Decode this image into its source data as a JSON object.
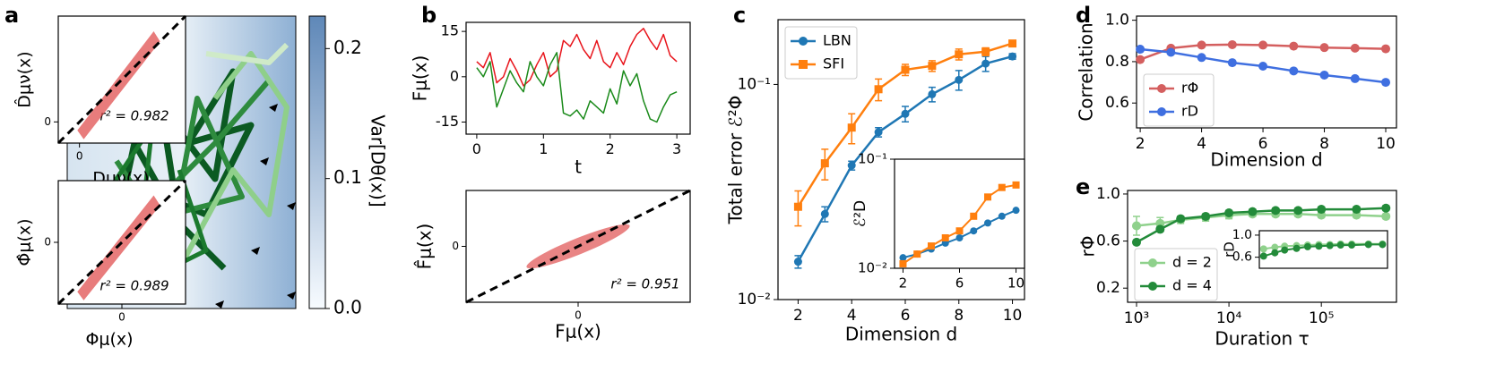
{
  "chart_data": [
    {
      "type": "contour",
      "panel": "a",
      "colorbar_label": "Var[Dθ(x)]",
      "clim": [
        0,
        0.225
      ],
      "cbticks": [
        {
          "value": 0,
          "label": "0.0"
        },
        {
          "value": 0.1,
          "label": "0.1"
        },
        {
          "value": 0.2,
          "label": "0.2"
        }
      ],
      "insets": [
        {
          "type": "scatter",
          "xlabel": "Dμν(x)",
          "ylabel": "D̂μν(x)",
          "annotation": "r² = 0.982",
          "xlim": [
            -0.2,
            1
          ],
          "ylim": [
            -0.2,
            1
          ],
          "xticks": [
            0
          ],
          "yticks": [
            0
          ]
        },
        {
          "type": "scatter",
          "xlabel": "Φμ(x)",
          "ylabel": "Φ̂μ(x)",
          "annotation": "r² = 0.989",
          "xlim": [
            -1,
            1
          ],
          "ylim": [
            -1,
            1
          ],
          "xticks": [
            0
          ],
          "yticks": [
            0
          ]
        }
      ]
    },
    {
      "type": "line",
      "panel": "b",
      "xlabel": "t",
      "ylabel": "Fμ(x)",
      "xlim": [
        -0.16,
        3.2
      ],
      "ylim": [
        -19,
        18
      ],
      "xticks": [
        0,
        1,
        2,
        3
      ],
      "yticks": [
        -15,
        0,
        15
      ],
      "x": [
        0,
        0.1,
        0.2,
        0.3,
        0.4,
        0.5,
        0.6,
        0.7,
        0.8,
        0.9,
        1,
        1.1,
        1.2,
        1.3,
        1.4,
        1.5,
        1.6,
        1.7,
        1.8,
        1.9,
        2,
        2.1,
        2.2,
        2.3,
        2.4,
        2.5,
        2.6,
        2.7,
        2.8,
        2.9,
        3
      ],
      "series": [
        {
          "color": "#e8141b",
          "values": [
            5,
            3,
            8,
            -2,
            0,
            6,
            2,
            -3,
            -1,
            4,
            8,
            0,
            2,
            12,
            10,
            14,
            9,
            6,
            12,
            5,
            3,
            8,
            4,
            10,
            14,
            16,
            12,
            9,
            14,
            7,
            5
          ]
        },
        {
          "color": "#1a8a1a",
          "values": [
            3,
            0,
            5,
            -10,
            -4,
            2,
            -2,
            -5,
            5,
            0,
            -3,
            4,
            8,
            -12,
            -13,
            -11,
            -14,
            -8,
            -10,
            -12,
            -4,
            -9,
            2,
            -3,
            1,
            -8,
            -14,
            -15,
            -10,
            -6,
            -5
          ]
        }
      ]
    },
    {
      "type": "scatter",
      "xlabel": "Fμ(x)",
      "ylabel": "F̂μ(x)",
      "annotation": "r² = 0.951",
      "xlim": [
        -1,
        1
      ],
      "ylim": [
        -1,
        1
      ],
      "xticks": [
        0
      ],
      "yticks": [
        0
      ]
    },
    {
      "type": "line",
      "panel": "c",
      "xlabel": "Dimension d",
      "ylabel": "Total error ℰ²Φ",
      "ylog": true,
      "legend": "upper left",
      "xlim": [
        1.25,
        10.45
      ],
      "ylim": [
        0.01,
        0.2
      ],
      "xticks": [
        2,
        4,
        6,
        8,
        10
      ],
      "yticks": [
        {
          "value": 0.01,
          "label": "10⁻²"
        },
        {
          "value": 0.1,
          "label": "10⁻¹"
        }
      ],
      "x": [
        2,
        3,
        4,
        5,
        6,
        7,
        8,
        9,
        10
      ],
      "series": [
        {
          "name": "LBN",
          "color": "#1f77b4",
          "marker": "o",
          "values": [
            0.015,
            0.025,
            0.042,
            0.06,
            0.073,
            0.09,
            0.105,
            0.125,
            0.135
          ],
          "errors": [
            0.001,
            0.002,
            0.002,
            0.003,
            0.006,
            0.007,
            0.011,
            0.01,
            0.004
          ]
        },
        {
          "name": "SFI",
          "color": "#ff7f0e",
          "marker": "s",
          "values": [
            0.027,
            0.043,
            0.063,
            0.095,
            0.117,
            0.122,
            0.138,
            0.142,
            0.155
          ],
          "errors": [
            0.005,
            0.007,
            0.01,
            0.011,
            0.007,
            0.007,
            0.008,
            0.006,
            0.004
          ]
        }
      ],
      "inset": {
        "type": "line",
        "ylabel": "ℰ²D",
        "ylog": true,
        "xlim": [
          1.4,
          10.6
        ],
        "ylim": [
          0.01,
          0.1
        ],
        "xticks": [
          2,
          6,
          10
        ],
        "yticks": [
          {
            "value": 0.01,
            "label": "10⁻²"
          },
          {
            "value": 0.1,
            "label": "10⁻¹"
          }
        ],
        "x": [
          2,
          3,
          4,
          5,
          6,
          7,
          8,
          9,
          10
        ],
        "series": [
          {
            "color": "#1f77b4",
            "marker": "o",
            "values": [
              0.0125,
              0.0135,
              0.015,
              0.017,
              0.019,
              0.022,
              0.026,
              0.03,
              0.034
            ]
          },
          {
            "color": "#ff7f0e",
            "marker": "s",
            "values": [
              0.011,
              0.0135,
              0.016,
              0.019,
              0.022,
              0.03,
              0.045,
              0.055,
              0.058
            ]
          }
        ]
      }
    },
    {
      "type": "line",
      "panel": "d",
      "xlabel": "Dimension d",
      "ylabel": "Correlation",
      "legend": "lower left",
      "xlim": [
        1.88,
        10.35
      ],
      "ylim": [
        0.48,
        1.02
      ],
      "xticks": [
        2,
        4,
        6,
        8,
        10
      ],
      "yticks": [
        0.6,
        0.8,
        {
          "value": 1,
          "label": "1.0"
        }
      ],
      "x": [
        2,
        3,
        4,
        5,
        6,
        7,
        8,
        9,
        10
      ],
      "series": [
        {
          "name": "rΦ",
          "color": "#d45f5f",
          "marker": "o",
          "values": [
            0.81,
            0.865,
            0.88,
            0.882,
            0.88,
            0.875,
            0.868,
            0.865,
            0.862
          ]
        },
        {
          "name": "rD",
          "color": "#3f6fe0",
          "marker": "o",
          "values": [
            0.86,
            0.845,
            0.82,
            0.795,
            0.778,
            0.755,
            0.735,
            0.718,
            0.7
          ]
        }
      ]
    },
    {
      "type": "line",
      "panel": "e",
      "xlabel": "Duration τ",
      "ylabel": "rΦ",
      "xlog": true,
      "legend": "lower left",
      "xlim": [
        800,
        650000
      ],
      "ylim": [
        0.08,
        1.03
      ],
      "xticks": [
        {
          "value": 1000,
          "label": "10³"
        },
        {
          "value": 10000,
          "label": "10⁴"
        },
        {
          "value": 100000,
          "label": "10⁵"
        }
      ],
      "yticks": [
        0.2,
        0.6,
        {
          "value": 1,
          "label": "1.0"
        }
      ],
      "x": [
        1000,
        1800,
        3000,
        5600,
        10000,
        18000,
        32000,
        56000,
        100000,
        240000,
        500000
      ],
      "series": [
        {
          "name": "d = 2",
          "color": "#8fd18c",
          "marker": "o",
          "values": [
            0.73,
            0.75,
            0.78,
            0.8,
            0.82,
            0.83,
            0.83,
            0.83,
            0.82,
            0.82,
            0.81
          ],
          "errors": [
            0.08,
            0.05,
            0.03,
            0.03,
            0.03,
            0.02,
            0.02,
            0.02,
            0.02,
            0.02,
            0.02
          ]
        },
        {
          "name": "d = 4",
          "color": "#238b3a",
          "marker": "o",
          "values": [
            0.59,
            0.7,
            0.79,
            0.81,
            0.84,
            0.85,
            0.86,
            0.86,
            0.87,
            0.87,
            0.88
          ],
          "errors": [
            0.02,
            0.02,
            0.02,
            0.02,
            0.02,
            0.02,
            0.02,
            0.02,
            0.02,
            0.02,
            0.02
          ]
        }
      ],
      "inset": {
        "type": "line",
        "ylabel": "rD",
        "xlog": true,
        "xlim": [
          800,
          650000
        ],
        "ylim": [
          0.4,
          1.08
        ],
        "yticks": [
          0.6,
          {
            "value": 1,
            "label": "1.0"
          }
        ],
        "x": [
          1000,
          1800,
          3000,
          5600,
          10000,
          18000,
          32000,
          56000,
          100000,
          240000,
          500000
        ],
        "series": [
          {
            "color": "#8fd18c",
            "marker": "o",
            "values": [
              0.75,
              0.78,
              0.8,
              0.81,
              0.82,
              0.83,
              0.83,
              0.84,
              0.84,
              0.84,
              0.84
            ]
          },
          {
            "color": "#238b3a",
            "marker": "o",
            "values": [
              0.62,
              0.68,
              0.73,
              0.76,
              0.79,
              0.8,
              0.81,
              0.82,
              0.82,
              0.83,
              0.83
            ]
          }
        ]
      }
    }
  ]
}
